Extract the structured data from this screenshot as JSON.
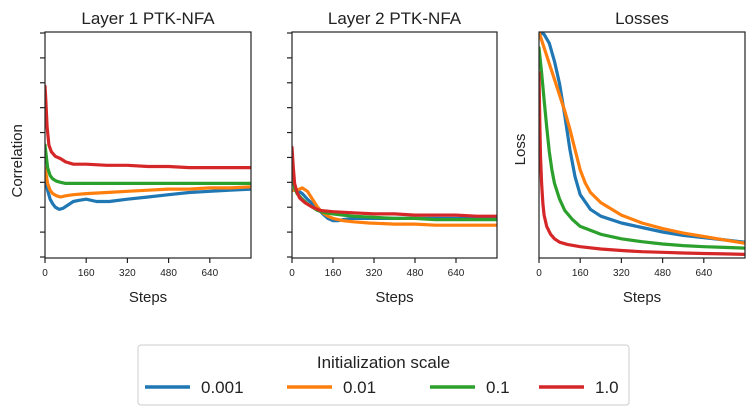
{
  "chart_data": [
    {
      "type": "line",
      "title": "Layer 1 PTK-NFA",
      "xlabel": "Steps",
      "ylabel": "Correlation",
      "xlim": [
        0,
        800
      ],
      "ylim": [
        0,
        1
      ],
      "xticks": [
        0,
        160,
        320,
        480,
        640
      ],
      "yticks_count": 10,
      "grid": false,
      "series": [
        {
          "name": "0.001",
          "color": "#1f77b4",
          "x": [
            0,
            10,
            20,
            30,
            40,
            55,
            70,
            90,
            110,
            130,
            160,
            200,
            250,
            320,
            400,
            480,
            560,
            640,
            720,
            800
          ],
          "y": [
            0.36,
            0.3,
            0.26,
            0.24,
            0.225,
            0.215,
            0.22,
            0.235,
            0.25,
            0.255,
            0.26,
            0.25,
            0.25,
            0.26,
            0.27,
            0.28,
            0.29,
            0.295,
            0.3,
            0.305
          ]
        },
        {
          "name": "0.01",
          "color": "#ff7f0e",
          "x": [
            0,
            10,
            20,
            30,
            45,
            60,
            80,
            110,
            160,
            240,
            320,
            400,
            480,
            560,
            640,
            720,
            800
          ],
          "y": [
            0.4,
            0.33,
            0.3,
            0.285,
            0.275,
            0.27,
            0.275,
            0.28,
            0.285,
            0.29,
            0.295,
            0.3,
            0.305,
            0.305,
            0.31,
            0.31,
            0.315
          ]
        },
        {
          "name": "0.1",
          "color": "#2ca02c",
          "x": [
            0,
            10,
            20,
            30,
            45,
            60,
            80,
            110,
            160,
            240,
            320,
            480,
            640,
            800
          ],
          "y": [
            0.5,
            0.4,
            0.365,
            0.35,
            0.34,
            0.335,
            0.33,
            0.33,
            0.33,
            0.33,
            0.33,
            0.33,
            0.33,
            0.33
          ]
        },
        {
          "name": "1.0",
          "color": "#d62728",
          "x": [
            0,
            3,
            8,
            15,
            25,
            40,
            60,
            80,
            110,
            160,
            240,
            320,
            400,
            480,
            560,
            640,
            720,
            800
          ],
          "y": [
            0.76,
            0.7,
            0.58,
            0.5,
            0.47,
            0.45,
            0.44,
            0.425,
            0.415,
            0.415,
            0.41,
            0.41,
            0.405,
            0.405,
            0.4,
            0.4,
            0.4,
            0.4
          ]
        }
      ]
    },
    {
      "type": "line",
      "title": "Layer 2 PTK-NFA",
      "xlabel": "Steps",
      "ylabel": "",
      "xlim": [
        0,
        800
      ],
      "ylim": [
        0,
        1
      ],
      "xticks": [
        0,
        160,
        320,
        480,
        640
      ],
      "yticks_count": 10,
      "grid": false,
      "series": [
        {
          "name": "0.001",
          "color": "#1f77b4",
          "x": [
            0,
            20,
            40,
            60,
            80,
            100,
            120,
            140,
            160,
            180,
            200,
            240,
            300,
            400,
            480,
            560,
            640,
            720,
            800
          ],
          "y": [
            0.3,
            0.3,
            0.285,
            0.26,
            0.24,
            0.22,
            0.195,
            0.175,
            0.165,
            0.165,
            0.17,
            0.175,
            0.175,
            0.175,
            0.175,
            0.175,
            0.175,
            0.175,
            0.175
          ]
        },
        {
          "name": "0.01",
          "color": "#ff7f0e",
          "x": [
            0,
            20,
            40,
            60,
            80,
            100,
            120,
            140,
            160,
            200,
            240,
            300,
            400,
            480,
            560,
            640,
            720,
            800
          ],
          "y": [
            0.3,
            0.3,
            0.31,
            0.295,
            0.26,
            0.225,
            0.2,
            0.185,
            0.175,
            0.165,
            0.16,
            0.155,
            0.15,
            0.15,
            0.145,
            0.145,
            0.145,
            0.145
          ]
        },
        {
          "name": "0.1",
          "color": "#2ca02c",
          "x": [
            0,
            10,
            20,
            40,
            60,
            80,
            100,
            130,
            160,
            200,
            240,
            320,
            400,
            480,
            560,
            640,
            720,
            800
          ],
          "y": [
            0.38,
            0.31,
            0.285,
            0.26,
            0.24,
            0.225,
            0.21,
            0.2,
            0.195,
            0.19,
            0.185,
            0.18,
            0.175,
            0.175,
            0.17,
            0.17,
            0.17,
            0.17
          ]
        },
        {
          "name": "1.0",
          "color": "#d62728",
          "x": [
            0,
            5,
            10,
            20,
            30,
            50,
            80,
            110,
            160,
            240,
            320,
            400,
            480,
            560,
            640,
            720,
            800
          ],
          "y": [
            0.49,
            0.4,
            0.33,
            0.29,
            0.265,
            0.245,
            0.225,
            0.21,
            0.205,
            0.2,
            0.195,
            0.195,
            0.19,
            0.19,
            0.19,
            0.185,
            0.185
          ]
        }
      ]
    },
    {
      "type": "line",
      "title": "Losses",
      "xlabel": "Steps",
      "ylabel": "Loss",
      "xlim": [
        0,
        800
      ],
      "ylim": [
        0,
        1
      ],
      "xticks": [
        0,
        160,
        320,
        480,
        640
      ],
      "yticks_count": 0,
      "grid": false,
      "series": [
        {
          "name": "0.001",
          "color": "#1f77b4",
          "x": [
            0,
            20,
            40,
            60,
            80,
            100,
            120,
            140,
            160,
            200,
            240,
            320,
            400,
            480,
            560,
            640,
            720,
            800
          ],
          "y": [
            1.0,
            0.99,
            0.95,
            0.87,
            0.77,
            0.63,
            0.48,
            0.36,
            0.28,
            0.215,
            0.185,
            0.155,
            0.135,
            0.115,
            0.1,
            0.09,
            0.08,
            0.07
          ]
        },
        {
          "name": "0.01",
          "color": "#ff7f0e",
          "x": [
            0,
            20,
            40,
            60,
            80,
            100,
            120,
            140,
            160,
            180,
            200,
            240,
            320,
            400,
            480,
            560,
            640,
            720,
            800
          ],
          "y": [
            1.0,
            0.93,
            0.86,
            0.79,
            0.72,
            0.65,
            0.57,
            0.48,
            0.39,
            0.33,
            0.29,
            0.245,
            0.19,
            0.155,
            0.13,
            0.11,
            0.095,
            0.08,
            0.065
          ]
        },
        {
          "name": "0.1",
          "color": "#2ca02c",
          "x": [
            0,
            10,
            20,
            30,
            40,
            50,
            60,
            80,
            100,
            130,
            160,
            240,
            320,
            400,
            480,
            560,
            640,
            720,
            800
          ],
          "y": [
            0.93,
            0.82,
            0.7,
            0.58,
            0.47,
            0.39,
            0.33,
            0.26,
            0.21,
            0.17,
            0.14,
            0.105,
            0.085,
            0.072,
            0.062,
            0.055,
            0.05,
            0.047,
            0.044
          ]
        },
        {
          "name": "1.0",
          "color": "#d62728",
          "x": [
            0,
            3,
            6,
            10,
            15,
            20,
            30,
            45,
            60,
            80,
            110,
            160,
            240,
            320,
            400,
            480,
            560,
            640,
            720,
            800
          ],
          "y": [
            0.82,
            0.6,
            0.45,
            0.33,
            0.24,
            0.19,
            0.14,
            0.105,
            0.085,
            0.07,
            0.06,
            0.05,
            0.04,
            0.033,
            0.028,
            0.025,
            0.022,
            0.02,
            0.018,
            0.016
          ]
        }
      ]
    }
  ],
  "legend": {
    "title": "Initialization scale",
    "entries": [
      {
        "label": "0.001",
        "color": "#1f77b4"
      },
      {
        "label": "0.01",
        "color": "#ff7f0e"
      },
      {
        "label": "0.1",
        "color": "#2ca02c"
      },
      {
        "label": "1.0",
        "color": "#d62728"
      }
    ]
  }
}
